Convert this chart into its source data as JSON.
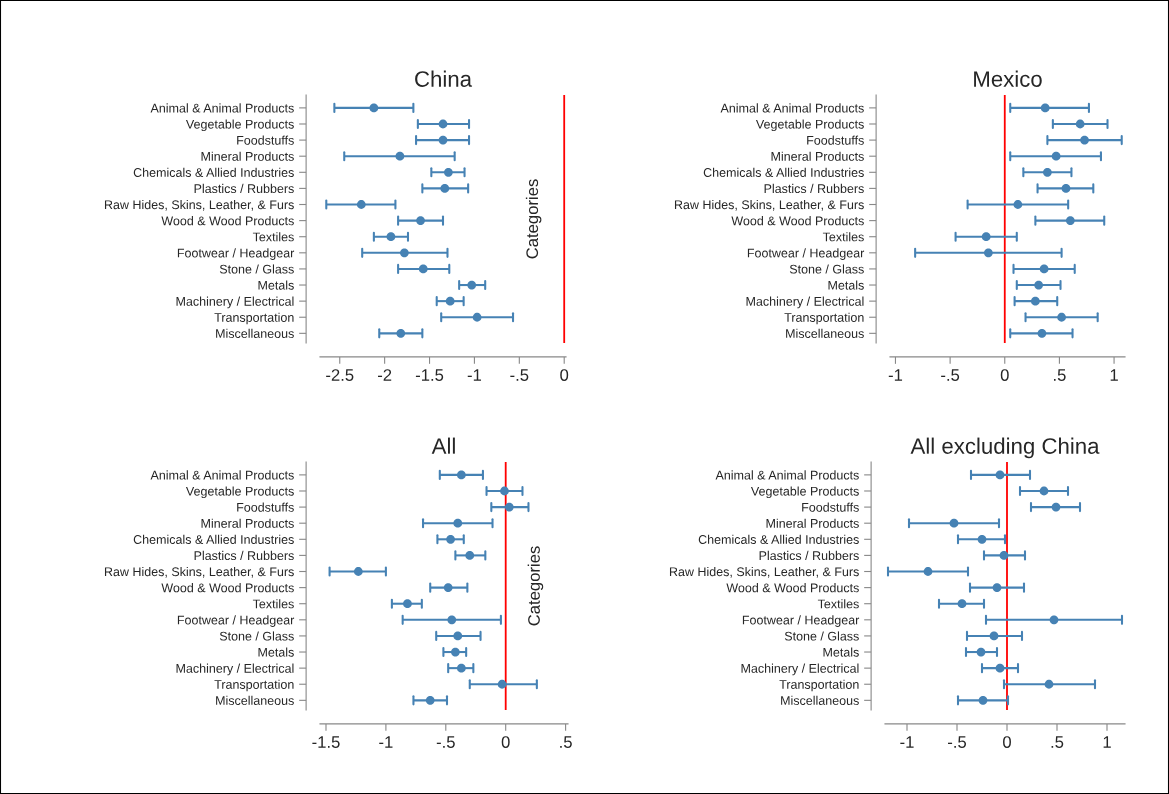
{
  "chart_data": [
    {
      "type": "scatter",
      "orientation": "horizontal",
      "title": "China",
      "ylabel": "Categories",
      "marker": "circle",
      "color": "#4682b4",
      "categories": [
        "Animal & Animal Products",
        "Vegetable Products",
        "Foodstuffs",
        "Mineral Products",
        "Chemicals & Allied Industries",
        "Plastics / Rubbers",
        "Raw Hides, Skins, Leather, & Furs",
        "Wood & Wood Products",
        "Textiles",
        "Footwear / Headgear",
        "Stone / Glass",
        "Metals",
        "Machinery / Electrical",
        "Transportation",
        "Miscellaneous"
      ],
      "values": [
        -2.12,
        -1.35,
        -1.35,
        -1.83,
        -1.29,
        -1.33,
        -2.26,
        -1.6,
        -1.93,
        -1.78,
        -1.57,
        -1.03,
        -1.27,
        -0.97,
        -1.82
      ],
      "errors": [
        [
          -2.56,
          -1.68
        ],
        [
          -1.63,
          -1.06
        ],
        [
          -1.65,
          -1.06
        ],
        [
          -2.45,
          -1.22
        ],
        [
          -1.48,
          -1.11
        ],
        [
          -1.58,
          -1.07
        ],
        [
          -2.65,
          -1.88
        ],
        [
          -1.85,
          -1.35
        ],
        [
          -2.12,
          -1.74
        ],
        [
          -2.25,
          -1.3
        ],
        [
          -1.85,
          -1.28
        ],
        [
          -1.17,
          -0.88
        ],
        [
          -1.42,
          -1.12
        ],
        [
          -1.37,
          -0.57
        ],
        [
          -2.06,
          -1.58
        ]
      ],
      "xlim": [
        -2.72,
        0.02
      ],
      "xticks": [
        {
          "value": -2.5,
          "label": "-2.5"
        },
        -2,
        {
          "value": -1.5,
          "label": "-1.5"
        },
        -1,
        {
          "value": -0.5,
          "label": "-.5"
        },
        0
      ],
      "ref_lines": [
        {
          "axis": "x",
          "value": 0,
          "color": "#ff0000"
        }
      ]
    },
    {
      "type": "scatter",
      "orientation": "horizontal",
      "title": "Mexico",
      "marker": "circle",
      "color": "#4682b4",
      "categories": [
        "Animal & Animal Products",
        "Vegetable Products",
        "Foodstuffs",
        "Mineral Products",
        "Chemicals & Allied Industries",
        "Plastics / Rubbers",
        "Raw Hides, Skins, Leather, & Furs",
        "Wood & Wood Products",
        "Textiles",
        "Footwear / Headgear",
        "Stone / Glass",
        "Metals",
        "Machinery / Electrical",
        "Transportation",
        "Miscellaneous"
      ],
      "values": [
        0.37,
        0.69,
        0.73,
        0.47,
        0.39,
        0.56,
        0.12,
        0.6,
        -0.17,
        -0.15,
        0.36,
        0.31,
        0.28,
        0.52,
        0.34
      ],
      "errors": [
        [
          0.05,
          0.77
        ],
        [
          0.44,
          0.94
        ],
        [
          0.39,
          1.07
        ],
        [
          0.05,
          0.88
        ],
        [
          0.17,
          0.61
        ],
        [
          0.3,
          0.81
        ],
        [
          -0.34,
          0.58
        ],
        [
          0.28,
          0.91
        ],
        [
          -0.45,
          0.11
        ],
        [
          -0.82,
          0.52
        ],
        [
          0.08,
          0.64
        ],
        [
          0.11,
          0.51
        ],
        [
          0.09,
          0.48
        ],
        [
          0.19,
          0.85
        ],
        [
          0.05,
          0.62
        ]
      ],
      "xlim": [
        -1.05,
        1.1
      ],
      "xticks": [
        -1,
        {
          "value": -0.5,
          "label": "-.5"
        },
        0,
        {
          "value": 0.5,
          "label": ".5"
        },
        1
      ],
      "ref_lines": [
        {
          "axis": "x",
          "value": 0,
          "color": "#ff0000"
        }
      ]
    },
    {
      "type": "scatter",
      "orientation": "horizontal",
      "title": "All",
      "ylabel": "Categories",
      "marker": "circle",
      "color": "#4682b4",
      "categories": [
        "Animal & Animal Products",
        "Vegetable Products",
        "Foodstuffs",
        "Mineral Products",
        "Chemicals & Allied Industries",
        "Plastics / Rubbers",
        "Raw Hides, Skins, Leather, & Furs",
        "Wood & Wood Products",
        "Textiles",
        "Footwear / Headgear",
        "Stone / Glass",
        "Metals",
        "Machinery / Electrical",
        "Transportation",
        "Miscellaneous"
      ],
      "values": [
        -0.37,
        -0.01,
        0.03,
        -0.4,
        -0.46,
        -0.3,
        -1.23,
        -0.48,
        -0.82,
        -0.45,
        -0.4,
        -0.42,
        -0.37,
        -0.03,
        -0.63
      ],
      "errors": [
        [
          -0.55,
          -0.19
        ],
        [
          -0.16,
          0.14
        ],
        [
          -0.12,
          0.19
        ],
        [
          -0.69,
          -0.11
        ],
        [
          -0.57,
          -0.35
        ],
        [
          -0.42,
          -0.17
        ],
        [
          -1.47,
          -1.0
        ],
        [
          -0.63,
          -0.32
        ],
        [
          -0.95,
          -0.7
        ],
        [
          -0.86,
          -0.04
        ],
        [
          -0.58,
          -0.21
        ],
        [
          -0.52,
          -0.33
        ],
        [
          -0.48,
          -0.27
        ],
        [
          -0.3,
          0.26
        ],
        [
          -0.77,
          -0.49
        ]
      ],
      "xlim": [
        -1.55,
        0.52
      ],
      "xticks": [
        {
          "value": -1.5,
          "label": "-1.5"
        },
        -1,
        {
          "value": -0.5,
          "label": "-.5"
        },
        0,
        {
          "value": 0.5,
          "label": ".5"
        }
      ],
      "ref_lines": [
        {
          "axis": "x",
          "value": 0,
          "color": "#ff0000"
        }
      ]
    },
    {
      "type": "scatter",
      "orientation": "horizontal",
      "title": "All excluding China",
      "marker": "circle",
      "color": "#4682b4",
      "categories": [
        "Animal & Animal Products",
        "Vegetable Products",
        "Foodstuffs",
        "Mineral Products",
        "Chemicals & Allied Industries",
        "Plastics / Rubbers",
        "Raw Hides, Skins, Leather, & Furs",
        "Wood & Wood Products",
        "Textiles",
        "Footwear / Headgear",
        "Stone / Glass",
        "Metals",
        "Machinery / Electrical",
        "Transportation",
        "Miscellaneous"
      ],
      "values": [
        -0.07,
        0.37,
        0.49,
        -0.53,
        -0.25,
        -0.03,
        -0.79,
        -0.1,
        -0.45,
        0.47,
        -0.13,
        -0.26,
        -0.07,
        0.42,
        -0.24
      ],
      "errors": [
        [
          -0.36,
          0.23
        ],
        [
          0.13,
          0.61
        ],
        [
          0.24,
          0.73
        ],
        [
          -0.98,
          -0.08
        ],
        [
          -0.49,
          -0.02
        ],
        [
          -0.23,
          0.18
        ],
        [
          -1.19,
          -0.39
        ],
        [
          -0.37,
          0.17
        ],
        [
          -0.68,
          -0.23
        ],
        [
          -0.21,
          1.15
        ],
        [
          -0.4,
          0.15
        ],
        [
          -0.41,
          -0.1
        ],
        [
          -0.25,
          0.11
        ],
        [
          -0.03,
          0.88
        ],
        [
          -0.49,
          0.01
        ]
      ],
      "xlim": [
        -1.22,
        1.18
      ],
      "xticks": [
        -1,
        {
          "value": -0.5,
          "label": "-.5"
        },
        0,
        {
          "value": 0.5,
          "label": ".5"
        },
        1
      ],
      "ref_lines": [
        {
          "axis": "x",
          "value": 0,
          "color": "#ff0000"
        }
      ]
    }
  ]
}
